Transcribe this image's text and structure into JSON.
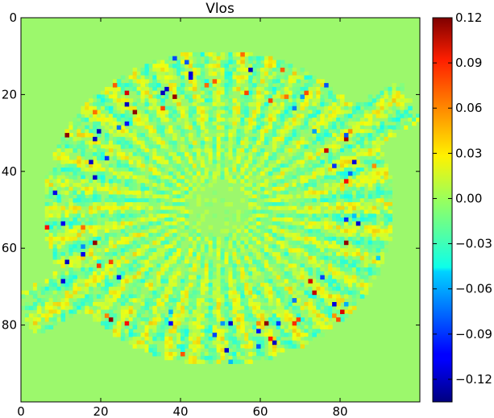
{
  "chart_data": {
    "type": "heatmap",
    "title": "Vlos",
    "xlabel": "",
    "ylabel": "",
    "x_ticks": [
      "0",
      "20",
      "40",
      "60",
      "80"
    ],
    "y_ticks": [
      "0",
      "20",
      "40",
      "60",
      "80"
    ],
    "xlim": [
      0,
      100
    ],
    "ylim": [
      100,
      0
    ],
    "colormap": "jet",
    "colorbar": {
      "range": [
        -0.135,
        0.12
      ],
      "ticks": [
        "0.12",
        "0.09",
        "0.06",
        "0.03",
        "0.00",
        "−0.03",
        "−0.06",
        "−0.09",
        "−0.12"
      ],
      "tick_values": [
        0.12,
        0.09,
        0.06,
        0.03,
        0.0,
        -0.03,
        -0.06,
        -0.09,
        -0.12
      ]
    },
    "background_value": 0.0,
    "field_description_note": ""
  },
  "colors": {
    "background_field": "#9CF86C",
    "jet_low": "#00007F",
    "jet_high": "#7F0000"
  }
}
